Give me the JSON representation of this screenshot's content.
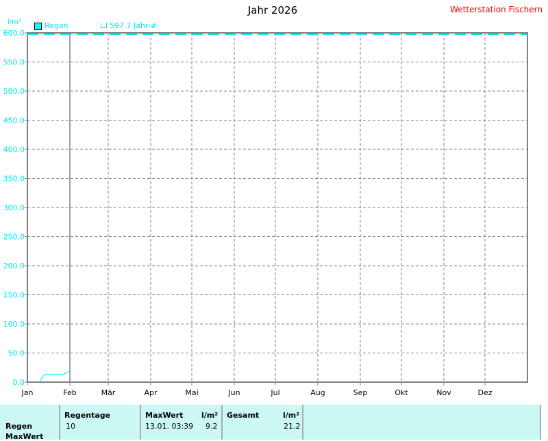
{
  "header": {
    "title": "Jahr 2026",
    "station": "Wetterstation Fischern"
  },
  "legend": {
    "series": "Regen",
    "reference": "597.7 Jahr-#"
  },
  "colors": {
    "series": "#00ffff",
    "grid": "#808080",
    "panel": "#ccf8f4",
    "station": "#ff0000"
  },
  "chart_data": {
    "type": "line",
    "ylabel": "l/m²",
    "ylim": [
      0,
      600
    ],
    "yticks": [
      "0.0",
      "50.0",
      "100.0",
      "150.0",
      "200.0",
      "250.0",
      "300.0",
      "350.0",
      "400.0",
      "450.0",
      "500.0",
      "550.0",
      "600.0"
    ],
    "xticks": [
      "Jan",
      "Feb",
      "Mär",
      "Apr",
      "Mai",
      "Jun",
      "Jul",
      "Aug",
      "Sep",
      "Okt",
      "Nov",
      "Dez"
    ],
    "grid": true,
    "legend_position": "top-left",
    "series": [
      {
        "name": "Regen",
        "x": [
          "2026-01-10",
          "2026-01-12",
          "2026-01-14",
          "2026-01-27",
          "2026-01-31",
          "2026-02-01"
        ],
        "y": [
          0,
          9,
          13.5,
          13.5,
          17.5,
          21.2
        ]
      }
    ],
    "reference_line": {
      "label": "597.7 Jahr-#",
      "value": 597.7
    },
    "current_date_marker": "2026-02-01"
  },
  "table": {
    "row_labels": [
      "Regen",
      "MaxWert"
    ],
    "regentage": {
      "header": "Regentage",
      "value": "10"
    },
    "maxwert": {
      "header": "MaxWert",
      "unit": "l/m²",
      "date": "13.01.  03:39",
      "value": "9.2"
    },
    "gesamt": {
      "header": "Gesamt",
      "unit": "l/m²",
      "value": "21.2"
    }
  }
}
